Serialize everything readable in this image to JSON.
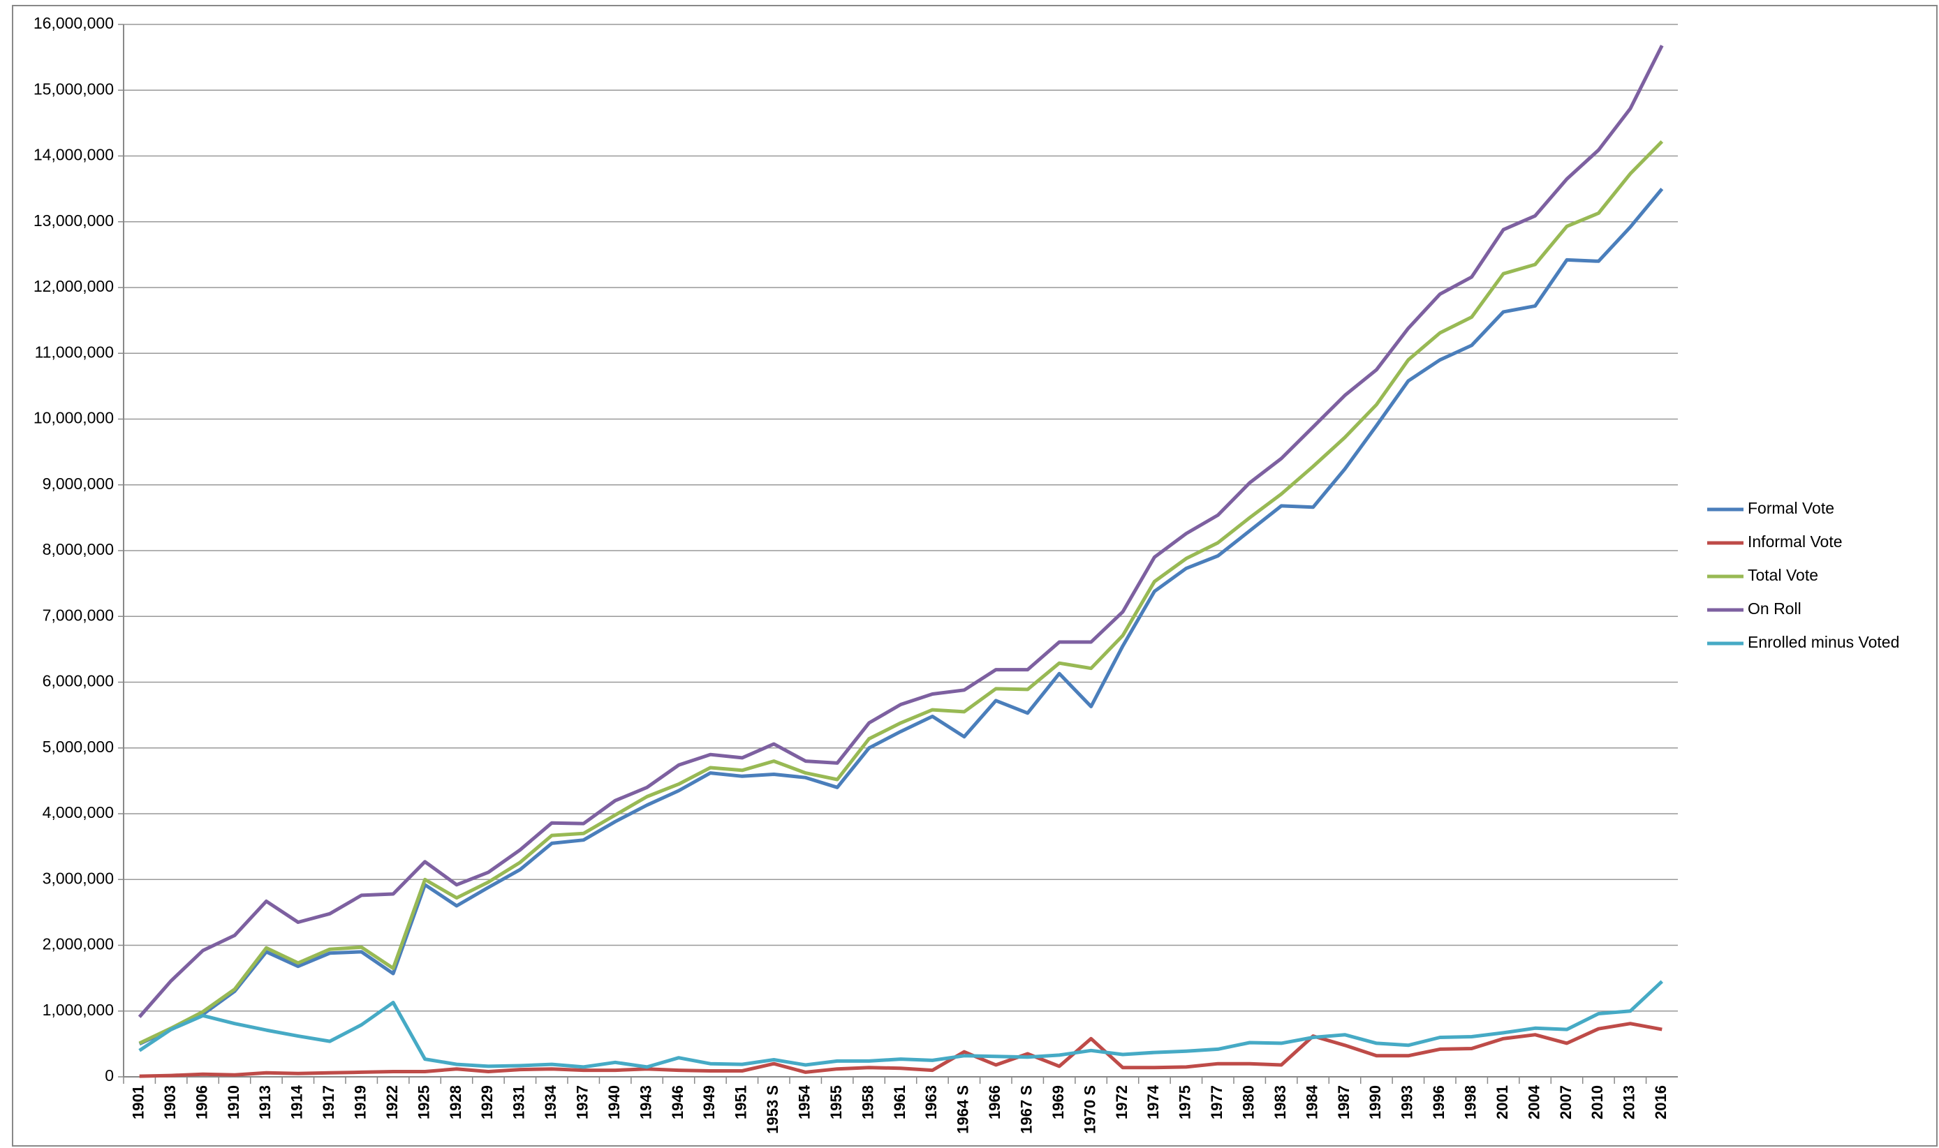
{
  "chart_data": {
    "type": "line",
    "categories": [
      "1901",
      "1903",
      "1906",
      "1910",
      "1913",
      "1914",
      "1917",
      "1919",
      "1922",
      "1925",
      "1928",
      "1929",
      "1931",
      "1934",
      "1937",
      "1940",
      "1943",
      "1946",
      "1949",
      "1951",
      "1953 S",
      "1954",
      "1955",
      "1958",
      "1961",
      "1963",
      "1964 S",
      "1966",
      "1967 S",
      "1969",
      "1970 S",
      "1972",
      "1974",
      "1975",
      "1977",
      "1980",
      "1983",
      "1984",
      "1987",
      "1990",
      "1993",
      "1996",
      "1998",
      "2001",
      "2004",
      "2007",
      "2010",
      "2013",
      "2016"
    ],
    "series": [
      {
        "name": "Formal Vote",
        "color": "#4a7ebb",
        "values": [
          500000,
          720000,
          950000,
          1300000,
          1900000,
          1680000,
          1880000,
          1900000,
          1570000,
          2920000,
          2600000,
          2880000,
          3150000,
          3550000,
          3600000,
          3880000,
          4130000,
          4350000,
          4620000,
          4570000,
          4600000,
          4550000,
          4400000,
          5000000,
          5250000,
          5480000,
          5170000,
          5720000,
          5530000,
          6130000,
          5630000,
          6550000,
          7380000,
          7730000,
          7920000,
          8300000,
          8680000,
          8660000,
          9240000,
          9900000,
          10580000,
          10900000,
          11120000,
          11630000,
          11720000,
          12420000,
          12400000,
          12920000,
          13500000
        ]
      },
      {
        "name": "Informal Vote",
        "color": "#be4b48",
        "values": [
          10000,
          20000,
          40000,
          30000,
          60000,
          50000,
          60000,
          70000,
          80000,
          80000,
          120000,
          80000,
          110000,
          120000,
          100000,
          100000,
          120000,
          100000,
          90000,
          90000,
          200000,
          70000,
          120000,
          140000,
          130000,
          100000,
          380000,
          180000,
          350000,
          160000,
          580000,
          140000,
          140000,
          150000,
          200000,
          200000,
          180000,
          620000,
          480000,
          320000,
          320000,
          420000,
          430000,
          580000,
          640000,
          510000,
          730000,
          810000,
          720000
        ]
      },
      {
        "name": "Total Vote",
        "color": "#98b954",
        "values": [
          510000,
          740000,
          990000,
          1330000,
          1960000,
          1730000,
          1940000,
          1970000,
          1650000,
          3000000,
          2720000,
          2960000,
          3260000,
          3670000,
          3700000,
          3980000,
          4260000,
          4450000,
          4700000,
          4660000,
          4800000,
          4620000,
          4520000,
          5140000,
          5380000,
          5580000,
          5550000,
          5900000,
          5890000,
          6290000,
          6210000,
          6710000,
          7530000,
          7880000,
          8120000,
          8500000,
          8860000,
          9280000,
          9720000,
          10220000,
          10900000,
          11310000,
          11550000,
          12210000,
          12350000,
          12930000,
          13130000,
          13730000,
          14220000
        ]
      },
      {
        "name": "On Roll",
        "color": "#7d60a0",
        "values": [
          910000,
          1460000,
          1920000,
          2150000,
          2670000,
          2350000,
          2480000,
          2760000,
          2780000,
          3270000,
          2920000,
          3110000,
          3450000,
          3860000,
          3850000,
          4200000,
          4400000,
          4740000,
          4900000,
          4850000,
          5060000,
          4800000,
          4770000,
          5380000,
          5660000,
          5820000,
          5880000,
          6190000,
          6190000,
          6610000,
          6610000,
          7070000,
          7900000,
          8260000,
          8540000,
          9030000,
          9400000,
          9880000,
          10360000,
          10750000,
          11380000,
          11900000,
          12160000,
          12880000,
          13090000,
          13650000,
          14090000,
          14720000,
          15680000
        ]
      },
      {
        "name": "Enrolled minus Voted",
        "color": "#46aac5",
        "values": [
          400000,
          720000,
          930000,
          810000,
          710000,
          620000,
          540000,
          790000,
          1130000,
          270000,
          190000,
          160000,
          170000,
          190000,
          150000,
          220000,
          150000,
          290000,
          200000,
          190000,
          260000,
          180000,
          240000,
          240000,
          270000,
          250000,
          320000,
          310000,
          300000,
          330000,
          400000,
          340000,
          370000,
          390000,
          420000,
          520000,
          510000,
          600000,
          640000,
          510000,
          480000,
          600000,
          610000,
          670000,
          740000,
          720000,
          960000,
          1000000,
          1450000
        ]
      }
    ],
    "ylim": [
      0,
      16000000
    ],
    "yticks": [
      0,
      {
        "value": 1000000,
        "label": "1,000,000"
      },
      {
        "value": 2000000,
        "label": "2,000,000"
      },
      {
        "value": 3000000,
        "label": "3,000,000"
      },
      {
        "value": 4000000,
        "label": "4,000,000"
      },
      {
        "value": 5000000,
        "label": "5,000,000"
      },
      {
        "value": 6000000,
        "label": "6,000,000"
      },
      {
        "value": 7000000,
        "label": "7,000,000"
      },
      {
        "value": 8000000,
        "label": "8,000,000"
      },
      {
        "value": 9000000,
        "label": "9,000,000"
      },
      {
        "value": 10000000,
        "label": "10,000,000"
      },
      {
        "value": 11000000,
        "label": "11,000,000"
      },
      {
        "value": 12000000,
        "label": "12,000,000"
      },
      {
        "value": 13000000,
        "label": "13,000,000"
      },
      {
        "value": 14000000,
        "label": "14,000,000"
      },
      {
        "value": 15000000,
        "label": "15,000,000"
      },
      {
        "value": 16000000,
        "label": "16,000,000"
      }
    ],
    "grid": true,
    "legend": "right"
  }
}
